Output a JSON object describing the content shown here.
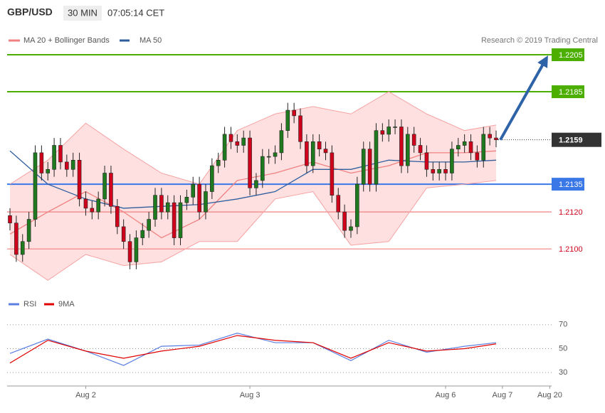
{
  "chart_data": {
    "type": "candlestick",
    "title": "GBP/USD",
    "timeframe": "30 MIN",
    "time": "07:05:14 CET",
    "legend": [
      "MA 20 + Bollinger Bands",
      "MA 50"
    ],
    "source": "Research © 2019 Trading Central",
    "up_color": "#1f7a1f",
    "down_color": "#d0021b",
    "xlim": [
      0,
      77
    ],
    "ylim": [
      1.2077,
      1.222
    ],
    "xticks": [
      {
        "value": 12,
        "label": "Aug 2"
      },
      {
        "value": 38,
        "label": "Aug 3"
      },
      {
        "value": 69,
        "label": "Aug 6"
      },
      {
        "value": 78,
        "label": "Aug 7"
      },
      {
        "value": 85.5,
        "label": "Aug 20"
      }
    ],
    "open": [
      1.2118,
      1.2114,
      1.2097,
      1.2104,
      1.2116,
      1.2152,
      1.2141,
      1.2143,
      1.2156,
      1.2147,
      1.2143,
      1.2148,
      1.2127,
      1.2122,
      1.212,
      1.2127,
      1.2141,
      1.2123,
      1.2112,
      1.2104,
      1.2093,
      1.2106,
      1.211,
      1.2116,
      1.2129,
      1.212,
      1.2125,
      1.2106,
      1.2125,
      1.2128,
      1.2135,
      1.212,
      1.2131,
      1.2145,
      1.2148,
      1.2162,
      1.2158,
      1.2156,
      1.216,
      1.2133,
      1.2137,
      1.215,
      1.215,
      1.2152,
      1.2164,
      1.2175,
      1.2172,
      1.2158,
      1.2145,
      1.2158,
      1.2154,
      1.2152,
      1.2129,
      1.212,
      1.211,
      1.2112,
      1.2135,
      1.2154,
      1.2135,
      1.2164,
      1.2162,
      1.2166,
      1.2166,
      1.2145,
      1.2162,
      1.2156,
      1.2152,
      1.2143,
      1.2141,
      1.2143,
      1.2141,
      1.2154,
      1.2156,
      1.2158,
      1.2152,
      1.2148,
      1.2162,
      1.216
    ],
    "high": [
      1.2122,
      1.2118,
      1.2108,
      1.212,
      1.2156,
      1.2156,
      1.2147,
      1.216,
      1.216,
      1.2151,
      1.2152,
      1.2152,
      1.2131,
      1.2126,
      1.2131,
      1.2145,
      1.2145,
      1.2127,
      1.2116,
      1.2108,
      1.211,
      1.2114,
      1.212,
      1.2133,
      1.2133,
      1.2129,
      1.2129,
      1.2129,
      1.2132,
      1.2139,
      1.2139,
      1.2135,
      1.2149,
      1.2152,
      1.2166,
      1.2166,
      1.2162,
      1.2164,
      1.2164,
      1.2141,
      1.2154,
      1.2154,
      1.2156,
      1.2168,
      1.2179,
      1.2179,
      1.2176,
      1.2162,
      1.2162,
      1.2162,
      1.2158,
      1.2156,
      1.2133,
      1.2124,
      1.2116,
      1.2139,
      1.2158,
      1.2158,
      1.2168,
      1.2168,
      1.217,
      1.217,
      1.217,
      1.2166,
      1.2166,
      1.216,
      1.2156,
      1.2147,
      1.2147,
      1.2147,
      1.2158,
      1.216,
      1.2162,
      1.2162,
      1.2156,
      1.2166,
      1.2166,
      1.2164
    ],
    "low": [
      1.211,
      1.2093,
      1.2093,
      1.21,
      1.2112,
      1.2137,
      1.2137,
      1.2139,
      1.2143,
      1.2139,
      1.2139,
      1.2123,
      1.2118,
      1.2116,
      1.2116,
      1.2123,
      1.2119,
      1.2108,
      1.21,
      1.2089,
      1.2089,
      1.2102,
      1.2106,
      1.2112,
      1.2116,
      1.2116,
      1.2102,
      1.2102,
      1.2121,
      1.2124,
      1.2116,
      1.2116,
      1.2127,
      1.2141,
      1.2144,
      1.2154,
      1.2152,
      1.2152,
      1.2129,
      1.2129,
      1.2133,
      1.2146,
      1.2146,
      1.2148,
      1.216,
      1.2168,
      1.2154,
      1.2141,
      1.2141,
      1.215,
      1.2148,
      1.2125,
      1.2116,
      1.2106,
      1.2106,
      1.2108,
      1.2131,
      1.2131,
      1.2131,
      1.2158,
      1.2158,
      1.2162,
      1.2141,
      1.2141,
      1.2152,
      1.2148,
      1.2139,
      1.2137,
      1.2137,
      1.2137,
      1.2137,
      1.215,
      1.2152,
      1.2148,
      1.2144,
      1.2144,
      1.2156,
      1.2155
    ],
    "close": [
      1.2114,
      1.2097,
      1.2104,
      1.2116,
      1.2152,
      1.2141,
      1.2143,
      1.2156,
      1.2147,
      1.2143,
      1.2148,
      1.2127,
      1.2122,
      1.212,
      1.2127,
      1.2141,
      1.2123,
      1.2112,
      1.2104,
      1.2093,
      1.2106,
      1.211,
      1.2116,
      1.2129,
      1.212,
      1.2125,
      1.2106,
      1.2125,
      1.2128,
      1.2135,
      1.212,
      1.2131,
      1.2145,
      1.2148,
      1.2162,
      1.2158,
      1.2156,
      1.216,
      1.2133,
      1.2137,
      1.215,
      1.215,
      1.2152,
      1.2164,
      1.2175,
      1.2172,
      1.2158,
      1.2145,
      1.2158,
      1.2154,
      1.2152,
      1.2129,
      1.212,
      1.211,
      1.2112,
      1.2135,
      1.2154,
      1.2135,
      1.2164,
      1.2162,
      1.2166,
      1.2166,
      1.2145,
      1.2162,
      1.2156,
      1.2152,
      1.2143,
      1.2141,
      1.2143,
      1.2141,
      1.2154,
      1.2156,
      1.2158,
      1.2152,
      1.2148,
      1.2162,
      1.216,
      1.2159
    ],
    "overlay_x": [
      0,
      6,
      12,
      18,
      24,
      30,
      36,
      42,
      48,
      54,
      60,
      66,
      72,
      77
    ],
    "overlays": [
      {
        "name": "upper",
        "color": "#f6a3a3",
        "values": [
          1.2135,
          1.2148,
          1.2168,
          1.2154,
          1.2141,
          1.2135,
          1.2164,
          1.2173,
          1.2177,
          1.2173,
          1.2185,
          1.2173,
          1.2164,
          1.2167
        ]
      },
      {
        "name": "lower",
        "color": "#f6a3a3",
        "values": [
          1.2097,
          1.2083,
          1.2097,
          1.2091,
          1.2093,
          1.2104,
          1.2104,
          1.2127,
          1.2131,
          1.2102,
          1.2104,
          1.2133,
          1.2135,
          1.2137
        ]
      },
      {
        "name": "MA 20",
        "color": "#f08080",
        "values": [
          1.2108,
          1.212,
          1.2131,
          1.212,
          1.2106,
          1.2116,
          1.2137,
          1.2141,
          1.2147,
          1.2141,
          1.2145,
          1.2152,
          1.2152,
          1.2153
        ]
      },
      {
        "name": "MA 50",
        "color": "#2e5e9e",
        "values": [
          1.2153,
          1.2135,
          1.2127,
          1.2122,
          1.2123,
          1.2124,
          1.2127,
          1.2131,
          1.2143,
          1.2143,
          1.2148,
          1.2147,
          1.2147,
          1.2148
        ]
      }
    ],
    "levels": [
      {
        "value": 1.2205,
        "color": "#4caf00",
        "style": "box"
      },
      {
        "value": 1.2185,
        "color": "#4caf00",
        "style": "box"
      },
      {
        "value": 1.2135,
        "color": "#3b78e7",
        "style": "box"
      },
      {
        "value": 1.212,
        "label": "1.2120",
        "color": "#f08080",
        "style": "text"
      },
      {
        "value": 1.21,
        "label": "1.2100",
        "color": "#f08080",
        "style": "text"
      },
      {
        "value": 1.2159,
        "color": "#333333",
        "style": "current"
      }
    ],
    "arrow": {
      "from": 1.2159,
      "to": 1.2205,
      "color": "#2f63a8"
    },
    "rsi": {
      "legend": [
        "RSI",
        "9MA"
      ],
      "ylim": [
        20,
        80
      ],
      "yticks": [
        30,
        50,
        70
      ],
      "series": [
        {
          "name": "RSI",
          "color": "#5b7fe0",
          "values": [
            46,
            58,
            48,
            36,
            52,
            53,
            63,
            55,
            55,
            40,
            57,
            47,
            52,
            55
          ]
        },
        {
          "name": "9MA",
          "color": "#e00000",
          "values": [
            38,
            57,
            48,
            42,
            48,
            52,
            61,
            57,
            55,
            42,
            55,
            48,
            50,
            54
          ]
        }
      ]
    }
  }
}
